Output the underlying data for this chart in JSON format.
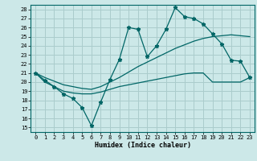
{
  "xlabel": "Humidex (Indice chaleur)",
  "background_color": "#cce8e8",
  "grid_color": "#aacccc",
  "line_color": "#006666",
  "xlim": [
    -0.5,
    23.5
  ],
  "ylim": [
    14.5,
    28.5
  ],
  "yticks": [
    15,
    16,
    17,
    18,
    19,
    20,
    21,
    22,
    23,
    24,
    25,
    26,
    27,
    28
  ],
  "xticks": [
    0,
    1,
    2,
    3,
    4,
    5,
    6,
    7,
    8,
    9,
    10,
    11,
    12,
    13,
    14,
    15,
    16,
    17,
    18,
    19,
    20,
    21,
    22,
    23
  ],
  "series1_x": [
    0,
    1,
    2,
    3,
    4,
    5,
    6,
    7,
    8,
    9,
    10,
    11,
    12,
    13,
    14,
    15,
    16,
    17,
    18,
    19,
    20,
    21,
    22,
    23
  ],
  "series1_y": [
    21.0,
    20.2,
    19.5,
    18.7,
    18.2,
    17.2,
    15.2,
    17.8,
    20.3,
    22.5,
    26.0,
    25.8,
    22.8,
    24.0,
    25.8,
    28.2,
    27.2,
    27.0,
    26.4,
    25.3,
    24.2,
    22.4,
    22.3,
    20.5
  ],
  "series2_x": [
    0,
    1,
    2,
    3,
    4,
    5,
    6,
    7,
    8,
    9,
    10,
    11,
    12,
    13,
    14,
    15,
    16,
    17,
    18,
    19,
    20,
    21,
    22,
    23
  ],
  "series2_y": [
    21.0,
    20.0,
    19.5,
    19.0,
    18.8,
    18.7,
    18.7,
    18.9,
    19.2,
    19.5,
    19.7,
    19.9,
    20.1,
    20.3,
    20.5,
    20.7,
    20.9,
    21.0,
    21.0,
    20.0,
    20.0,
    20.0,
    20.0,
    20.5
  ],
  "series3_x": [
    0,
    1,
    2,
    3,
    4,
    5,
    6,
    7,
    8,
    9,
    10,
    11,
    12,
    13,
    14,
    15,
    16,
    17,
    18,
    19,
    20,
    21,
    22,
    23
  ],
  "series3_y": [
    21.0,
    20.5,
    20.1,
    19.7,
    19.5,
    19.3,
    19.2,
    19.5,
    20.0,
    20.5,
    21.1,
    21.7,
    22.2,
    22.7,
    23.2,
    23.7,
    24.1,
    24.5,
    24.8,
    25.0,
    25.1,
    25.2,
    25.1,
    25.0
  ]
}
